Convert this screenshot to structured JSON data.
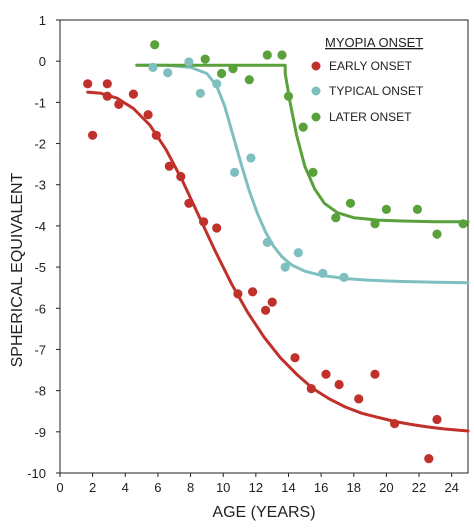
{
  "chart_data": {
    "type": "scatter",
    "xlabel": "AGE (YEARS)",
    "ylabel": "SPHERICAL EQUIVALENT",
    "xlim": [
      0,
      25
    ],
    "ylim": [
      -10,
      1
    ],
    "xticks": [
      "0",
      "2",
      "4",
      "6",
      "8",
      "10",
      "12",
      "14",
      "16",
      "18",
      "20",
      "22",
      "24"
    ],
    "yticks": [
      "1",
      "0",
      "-1",
      "-2",
      "-3",
      "-4",
      "-5",
      "-6",
      "-7",
      "-8",
      "-9",
      "-10"
    ],
    "legend": {
      "title": "MYOPIA ONSET",
      "position": "top-right"
    },
    "series": [
      {
        "name": "EARLY ONSET",
        "color": "#c0312b",
        "points": [
          [
            1.7,
            -0.55
          ],
          [
            2.0,
            -1.8
          ],
          [
            2.9,
            -0.55
          ],
          [
            2.9,
            -0.85
          ],
          [
            3.6,
            -1.05
          ],
          [
            4.5,
            -0.8
          ],
          [
            5.4,
            -1.3
          ],
          [
            5.9,
            -1.8
          ],
          [
            6.7,
            -2.55
          ],
          [
            7.4,
            -2.8
          ],
          [
            7.9,
            -3.45
          ],
          [
            8.8,
            -3.9
          ],
          [
            9.6,
            -4.05
          ],
          [
            10.9,
            -5.65
          ],
          [
            11.8,
            -5.6
          ],
          [
            12.6,
            -6.05
          ],
          [
            13.0,
            -5.85
          ],
          [
            14.4,
            -7.2
          ],
          [
            15.4,
            -7.95
          ],
          [
            16.3,
            -7.6
          ],
          [
            17.1,
            -7.85
          ],
          [
            18.3,
            -8.2
          ],
          [
            19.3,
            -7.6
          ],
          [
            20.5,
            -8.8
          ],
          [
            22.6,
            -9.65
          ],
          [
            23.1,
            -8.7
          ]
        ],
        "fit": [
          [
            1.7,
            -0.75
          ],
          [
            2.5,
            -0.78
          ],
          [
            3.5,
            -0.9
          ],
          [
            4.5,
            -1.15
          ],
          [
            5.5,
            -1.55
          ],
          [
            6.5,
            -2.15
          ],
          [
            7.5,
            -2.9
          ],
          [
            8.5,
            -3.75
          ],
          [
            9.5,
            -4.6
          ],
          [
            10.5,
            -5.4
          ],
          [
            11.5,
            -6.1
          ],
          [
            12.5,
            -6.7
          ],
          [
            13.5,
            -7.2
          ],
          [
            14.5,
            -7.6
          ],
          [
            15.5,
            -7.95
          ],
          [
            16.5,
            -8.2
          ],
          [
            17.5,
            -8.4
          ],
          [
            18.5,
            -8.55
          ],
          [
            19.5,
            -8.65
          ],
          [
            20.5,
            -8.75
          ],
          [
            21.5,
            -8.82
          ],
          [
            22.5,
            -8.88
          ],
          [
            23.5,
            -8.93
          ],
          [
            25.0,
            -8.98
          ]
        ]
      },
      {
        "name": "TYPICAL ONSET",
        "color": "#7fbfc0",
        "points": [
          [
            5.7,
            -0.15
          ],
          [
            6.6,
            -0.28
          ],
          [
            7.9,
            -0.02
          ],
          [
            8.6,
            -0.78
          ],
          [
            9.6,
            -0.55
          ],
          [
            10.7,
            -2.7
          ],
          [
            11.7,
            -2.35
          ],
          [
            12.7,
            -4.4
          ],
          [
            13.8,
            -5.0
          ],
          [
            14.6,
            -4.65
          ],
          [
            16.1,
            -5.15
          ],
          [
            17.4,
            -5.25
          ]
        ],
        "fit": [
          [
            4.7,
            -0.1
          ],
          [
            6.5,
            -0.1
          ],
          [
            8.0,
            -0.15
          ],
          [
            9.0,
            -0.3
          ],
          [
            9.6,
            -0.6
          ],
          [
            10.1,
            -1.1
          ],
          [
            10.6,
            -1.8
          ],
          [
            11.1,
            -2.5
          ],
          [
            11.6,
            -3.15
          ],
          [
            12.1,
            -3.7
          ],
          [
            12.6,
            -4.15
          ],
          [
            13.1,
            -4.5
          ],
          [
            13.6,
            -4.75
          ],
          [
            14.2,
            -4.95
          ],
          [
            15.0,
            -5.1
          ],
          [
            16.0,
            -5.2
          ],
          [
            17.5,
            -5.28
          ],
          [
            19.0,
            -5.32
          ],
          [
            21.0,
            -5.35
          ],
          [
            23.0,
            -5.37
          ],
          [
            25.0,
            -5.38
          ]
        ]
      },
      {
        "name": "LATER ONSET",
        "color": "#5aa13c",
        "points": [
          [
            5.8,
            0.4
          ],
          [
            8.9,
            0.05
          ],
          [
            9.9,
            -0.3
          ],
          [
            10.6,
            -0.18
          ],
          [
            11.6,
            -0.45
          ],
          [
            12.7,
            0.15
          ],
          [
            13.6,
            0.15
          ],
          [
            14.0,
            -0.85
          ],
          [
            14.9,
            -1.6
          ],
          [
            15.5,
            -2.7
          ],
          [
            16.9,
            -3.8
          ],
          [
            17.8,
            -3.45
          ],
          [
            19.3,
            -3.95
          ],
          [
            20.0,
            -3.6
          ],
          [
            21.9,
            -3.6
          ],
          [
            23.1,
            -4.2
          ],
          [
            24.7,
            -3.95
          ]
        ],
        "fit": [
          [
            4.7,
            -0.1
          ],
          [
            13.8,
            -0.1
          ],
          [
            13.8,
            -0.3
          ],
          [
            14.1,
            -1.0
          ],
          [
            14.5,
            -1.8
          ],
          [
            15.0,
            -2.55
          ],
          [
            15.6,
            -3.1
          ],
          [
            16.2,
            -3.45
          ],
          [
            17.0,
            -3.68
          ],
          [
            18.0,
            -3.8
          ],
          [
            19.5,
            -3.86
          ],
          [
            21.0,
            -3.88
          ],
          [
            23.0,
            -3.9
          ],
          [
            25.0,
            -3.9
          ]
        ]
      }
    ]
  }
}
